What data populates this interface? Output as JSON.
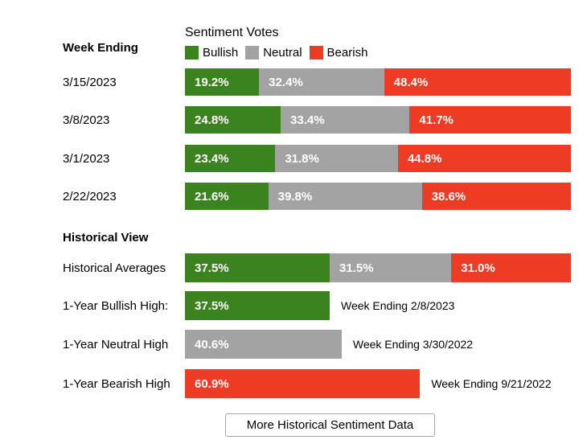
{
  "colors": {
    "bullish": "#3b831e",
    "neutral": "#a3a3a3",
    "bearish": "#ee3b23"
  },
  "header": {
    "week_ending_label": "Week Ending"
  },
  "chart_data": {
    "type": "bar",
    "subtype": "horizontal-stacked",
    "title": "Sentiment Votes",
    "categories": [
      "3/15/2023",
      "3/8/2023",
      "3/1/2023",
      "2/22/2023"
    ],
    "series": [
      {
        "name": "Bullish",
        "color": "#3b831e",
        "values": [
          19.2,
          24.8,
          23.4,
          21.6
        ]
      },
      {
        "name": "Neutral",
        "color": "#a3a3a3",
        "values": [
          32.4,
          33.4,
          31.8,
          39.8
        ]
      },
      {
        "name": "Bearish",
        "color": "#ee3b23",
        "values": [
          48.4,
          41.7,
          44.8,
          38.6
        ]
      }
    ],
    "xlim": [
      0,
      100
    ],
    "legend_position": "top",
    "value_labels": "inside-left, one decimal, percent sign",
    "historical_averages": {
      "label": "Historical Averages",
      "values": [
        37.5,
        31.5,
        31.0
      ]
    },
    "one_year_highs": [
      {
        "label": "1-Year Bullish High:",
        "series": "Bullish",
        "value": 37.5,
        "annotation": "Week Ending 2/8/2023"
      },
      {
        "label": "1-Year Neutral High",
        "series": "Neutral",
        "value": 40.6,
        "annotation": "Week Ending 3/30/2022"
      },
      {
        "label": "1-Year Bearish High",
        "series": "Bearish",
        "value": 60.9,
        "annotation": "Week Ending 9/21/2022"
      }
    ]
  },
  "historical": {
    "heading": "Historical View"
  },
  "button": {
    "label": "More Historical Sentiment Data"
  }
}
